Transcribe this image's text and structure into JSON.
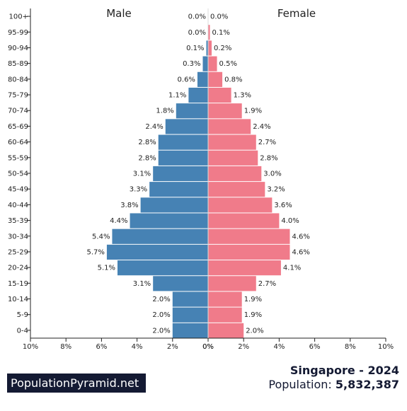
{
  "chart_data": {
    "type": "bar",
    "orientation": "horizontal-pyramid",
    "categories": [
      "0-4",
      "5-9",
      "10-14",
      "15-19",
      "20-24",
      "25-29",
      "30-34",
      "35-39",
      "40-44",
      "45-49",
      "50-54",
      "55-59",
      "60-64",
      "65-69",
      "70-74",
      "75-79",
      "80-84",
      "85-89",
      "90-94",
      "95-99",
      "100+"
    ],
    "series": [
      {
        "name": "Male",
        "color": "#4682b4",
        "values": [
          2.0,
          2.0,
          2.0,
          3.1,
          5.1,
          5.7,
          5.4,
          4.4,
          3.8,
          3.3,
          3.1,
          2.8,
          2.8,
          2.4,
          1.8,
          1.1,
          0.6,
          0.3,
          0.1,
          0.0,
          0.0
        ]
      },
      {
        "name": "Female",
        "color": "#f07b8a",
        "values": [
          2.0,
          1.9,
          1.9,
          2.7,
          4.1,
          4.6,
          4.6,
          4.0,
          3.6,
          3.2,
          3.0,
          2.8,
          2.7,
          2.4,
          1.9,
          1.3,
          0.8,
          0.5,
          0.2,
          0.1,
          0.0
        ]
      }
    ],
    "x_ticks": [
      "10%",
      "8%",
      "6%",
      "4%",
      "2%",
      "0%",
      "0%",
      "2%",
      "4%",
      "6%",
      "8%",
      "10%"
    ],
    "xlim": [
      0,
      10
    ],
    "grid": false
  },
  "footer": {
    "brand": "PopulationPyramid.net",
    "country_year": "Singapore - 2024",
    "population_label": "Population:",
    "population_value": "5,832,387"
  }
}
